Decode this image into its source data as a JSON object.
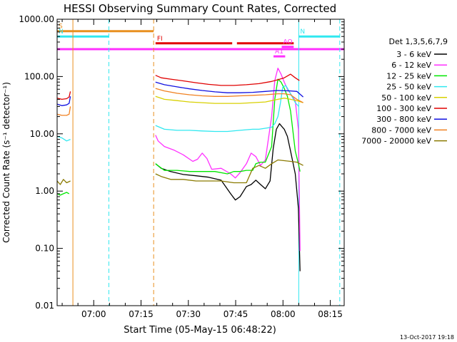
{
  "chart_data": {
    "type": "line",
    "title": "HESSI Observing Summary Count Rates, Corrected",
    "xlabel": "Start Time (05-May-15 06:48:22)",
    "ylabel": "Corrected Count Rate (s⁻¹ detector⁻¹)",
    "x_unit": "minutes after 06:48:22",
    "xlim": [
      0,
      91
    ],
    "ylim": [
      0.01,
      1000
    ],
    "yscale": "log",
    "x_ticks": [
      {
        "value": 11.6,
        "label": "07:00"
      },
      {
        "value": 26.6,
        "label": "07:15"
      },
      {
        "value": 41.6,
        "label": "07:30"
      },
      {
        "value": 56.6,
        "label": "07:45"
      },
      {
        "value": 71.6,
        "label": "08:00"
      },
      {
        "value": 86.6,
        "label": "08:15"
      }
    ],
    "y_ticks": [
      {
        "value": 1000,
        "label": "1000.00"
      },
      {
        "value": 100,
        "label": "100.00"
      },
      {
        "value": 10,
        "label": "10.00"
      },
      {
        "value": 1,
        "label": "1.00"
      },
      {
        "value": 0.1,
        "label": "0.10"
      },
      {
        "value": 0.01,
        "label": "0.01"
      }
    ],
    "legend_title": "Det 1,3,5,6,7,9",
    "legend_position": "right",
    "footer_date": "13-Oct-2017 19:18",
    "gaps": [
      [
        5.2,
        31.2
      ],
      [
        77.0,
        91
      ]
    ],
    "vlines": [
      {
        "x": 5.0,
        "color": "#e89020",
        "style": "solid"
      },
      {
        "x": 16.4,
        "color": "#30e8f0",
        "style": "dashed"
      },
      {
        "x": 30.6,
        "color": "#e89020",
        "style": "dashed"
      },
      {
        "x": 76.6,
        "color": "#30e8f0",
        "style": "solid"
      },
      {
        "x": 89.6,
        "color": "#30e8f0",
        "style": "dashed"
      }
    ],
    "flags": [
      {
        "label": "S",
        "color": "#e89020",
        "x": [
          0,
          30.6
        ],
        "y": 620
      },
      {
        "label": "N",
        "color": "#30e8f0",
        "x": [
          0,
          16.4
        ],
        "y": 500
      },
      {
        "label": "N",
        "color": "#30e8f0",
        "x": [
          76.6,
          89.6
        ],
        "y": 500
      },
      {
        "label": "",
        "color": "#ff30ff",
        "x": [
          0,
          91
        ],
        "y": 300
      },
      {
        "label": "FI",
        "color": "#e00000",
        "x": [
          31.2,
          55.5
        ],
        "y": 380
      },
      {
        "label": "",
        "color": "#e00000",
        "x": [
          57.0,
          75.0
        ],
        "y": 380
      },
      {
        "label": "AO",
        "color": "#ff30ff",
        "x": [
          71.2,
          75.0
        ],
        "y": 330
      },
      {
        "label": "A1",
        "color": "#ff30ff",
        "x": [
          68.6,
          72.3
        ],
        "y": 225
      }
    ],
    "series": [
      {
        "name": "3 - 6 keV",
        "color": "#000000",
        "x": [
          31.2,
          33,
          36,
          40,
          44,
          48,
          52,
          55,
          56.5,
          58,
          60,
          61.5,
          63,
          64.5,
          66,
          67.5,
          68.5,
          69.5,
          70.5,
          71.2,
          72,
          73,
          74,
          75.5,
          76.5,
          77,
          78,
          79,
          80,
          80.8
        ],
        "y": [
          3.0,
          2.5,
          2.2,
          1.95,
          1.85,
          1.75,
          1.55,
          0.9,
          0.7,
          0.8,
          1.2,
          1.3,
          1.55,
          1.3,
          1.1,
          1.5,
          5.5,
          12,
          15,
          13.5,
          12,
          9,
          5,
          2,
          0.5,
          0.04,
          0.03,
          0.028,
          0.028,
          0.028
        ]
      },
      {
        "name": "6 - 12 keV",
        "color": "#ff30ff",
        "x": [
          31.2,
          32,
          34,
          37,
          40,
          43,
          44.5,
          46,
          47.5,
          49,
          52,
          55,
          56.5,
          58,
          60,
          61.5,
          63,
          64.5,
          66,
          68,
          69,
          70,
          71,
          72,
          73,
          74,
          75.5,
          76.5,
          77,
          78,
          79,
          80.8
        ],
        "y": [
          9.5,
          7.5,
          6,
          5.2,
          4.3,
          3.3,
          3.6,
          4.6,
          3.7,
          2.4,
          2.5,
          2.0,
          1.7,
          2.1,
          3.0,
          4.6,
          4.0,
          2.8,
          3.5,
          20,
          85,
          140,
          110,
          80,
          60,
          50,
          38,
          12,
          0.09,
          0.09,
          0.09,
          0.09
        ]
      },
      {
        "name": "12 - 25 keV",
        "color": "#00e800",
        "x": [
          0,
          1,
          2,
          3,
          3.8,
          31.2,
          34,
          38,
          42,
          46,
          50,
          54,
          56,
          58,
          60,
          62,
          63,
          64.5,
          66,
          68,
          69,
          70,
          71,
          72,
          73,
          74,
          75.5,
          76.5,
          77,
          78,
          79,
          80.8,
          83.6,
          84.4,
          85.2,
          86,
          87.3
        ],
        "y": [
          0.9,
          0.85,
          0.9,
          0.95,
          0.9,
          3.0,
          2.3,
          2.3,
          2.2,
          2.2,
          2.2,
          2.0,
          2.2,
          2.2,
          2.3,
          2.3,
          3.0,
          3.2,
          3.2,
          6,
          40,
          90,
          80,
          62,
          45,
          25,
          5,
          3.0,
          2.2,
          2.0,
          1.8,
          1.5,
          0.5,
          0.55,
          0.5,
          0.55,
          0.5
        ]
      },
      {
        "name": "25 - 50 keV",
        "color": "#30e8f0",
        "x": [
          0,
          1.5,
          3,
          4.2,
          31.2,
          34,
          38,
          42,
          46,
          50,
          54,
          58,
          62,
          64,
          66,
          68,
          69,
          70,
          70.8,
          71.5,
          72.5,
          74,
          75.5,
          76.6,
          77.5,
          78.5,
          79.5,
          80.8,
          81.2,
          83,
          85,
          87,
          88.5,
          89.5
        ],
        "y": [
          9,
          8.5,
          7.5,
          8,
          14,
          12,
          11.5,
          11.5,
          11.2,
          11,
          11,
          11.5,
          12,
          12,
          12.5,
          13,
          15,
          20,
          35,
          65,
          70,
          50,
          35,
          30,
          25,
          22,
          18,
          14,
          8,
          10,
          9.5,
          9.5,
          9,
          9
        ]
      },
      {
        "name": "50 - 100 keV",
        "color": "#d8d000",
        "x": [
          31.2,
          34,
          38,
          42,
          46,
          50,
          54,
          58,
          62,
          66,
          68,
          70,
          72,
          74,
          76,
          78,
          80,
          82,
          84,
          86,
          88,
          89.6
        ],
        "y": [
          45,
          40,
          38,
          36,
          35,
          34,
          34,
          34,
          35,
          36,
          38,
          40,
          42,
          40,
          38,
          35,
          30,
          28,
          27,
          26,
          25,
          25
        ]
      },
      {
        "name": "100 - 300 keV",
        "color": "#e00000",
        "x": [
          0,
          1.5,
          3,
          3.8,
          4.2,
          31.2,
          33,
          36,
          40,
          44,
          48,
          52,
          56,
          60,
          64,
          68,
          70,
          72,
          74,
          75.5,
          76.8,
          77.6,
          78.5,
          80,
          82,
          84,
          86,
          88,
          89.6
        ],
        "y": [
          42,
          40,
          41,
          44,
          55,
          105,
          95,
          90,
          84,
          78,
          73,
          70,
          70,
          72,
          75,
          82,
          88,
          95,
          110,
          95,
          85,
          60,
          62,
          60,
          55,
          52,
          50,
          50,
          50
        ]
      },
      {
        "name": "300 - 800 keV",
        "color": "#1010e0",
        "x": [
          0,
          1.5,
          3,
          3.8,
          4.2,
          31.2,
          34,
          38,
          42,
          46,
          50,
          54,
          58,
          62,
          66,
          70,
          74,
          76,
          78,
          80,
          82,
          84,
          86,
          88,
          89.6
        ],
        "y": [
          33,
          31,
          32,
          34,
          45,
          80,
          72,
          66,
          61,
          57,
          54,
          52,
          52,
          53,
          55,
          57,
          56,
          55,
          44,
          40,
          38,
          36,
          35,
          34,
          33
        ]
      },
      {
        "name": "800 - 7000 keV",
        "color": "#f08020",
        "x": [
          0,
          1.5,
          3,
          3.8,
          4.2,
          31.2,
          34,
          38,
          42,
          46,
          50,
          54,
          58,
          62,
          66,
          70,
          72,
          74,
          76,
          78,
          80,
          82,
          84,
          86,
          88,
          89.6
        ],
        "y": [
          22,
          21,
          21,
          22,
          30,
          62,
          56,
          51,
          48,
          46,
          45,
          45,
          46,
          47,
          48,
          50,
          50,
          48,
          40,
          35,
          32,
          30,
          29,
          28,
          27,
          27
        ]
      },
      {
        "name": "7000 - 20000 keV",
        "color": "#8a7a00",
        "x": [
          0,
          1,
          2,
          3,
          4.2,
          31.2,
          33,
          36,
          40,
          44,
          48,
          52,
          56,
          60,
          62,
          64,
          66,
          68,
          70,
          72,
          74,
          76,
          78,
          80,
          80.8
        ],
        "y": [
          1.5,
          1.3,
          1.6,
          1.4,
          1.5,
          2.0,
          1.8,
          1.6,
          1.6,
          1.5,
          1.5,
          1.5,
          1.4,
          1.4,
          2.5,
          2.8,
          2.5,
          3,
          3.5,
          3.4,
          3.3,
          3.2,
          2.8,
          2.5,
          2.2
        ]
      }
    ]
  }
}
